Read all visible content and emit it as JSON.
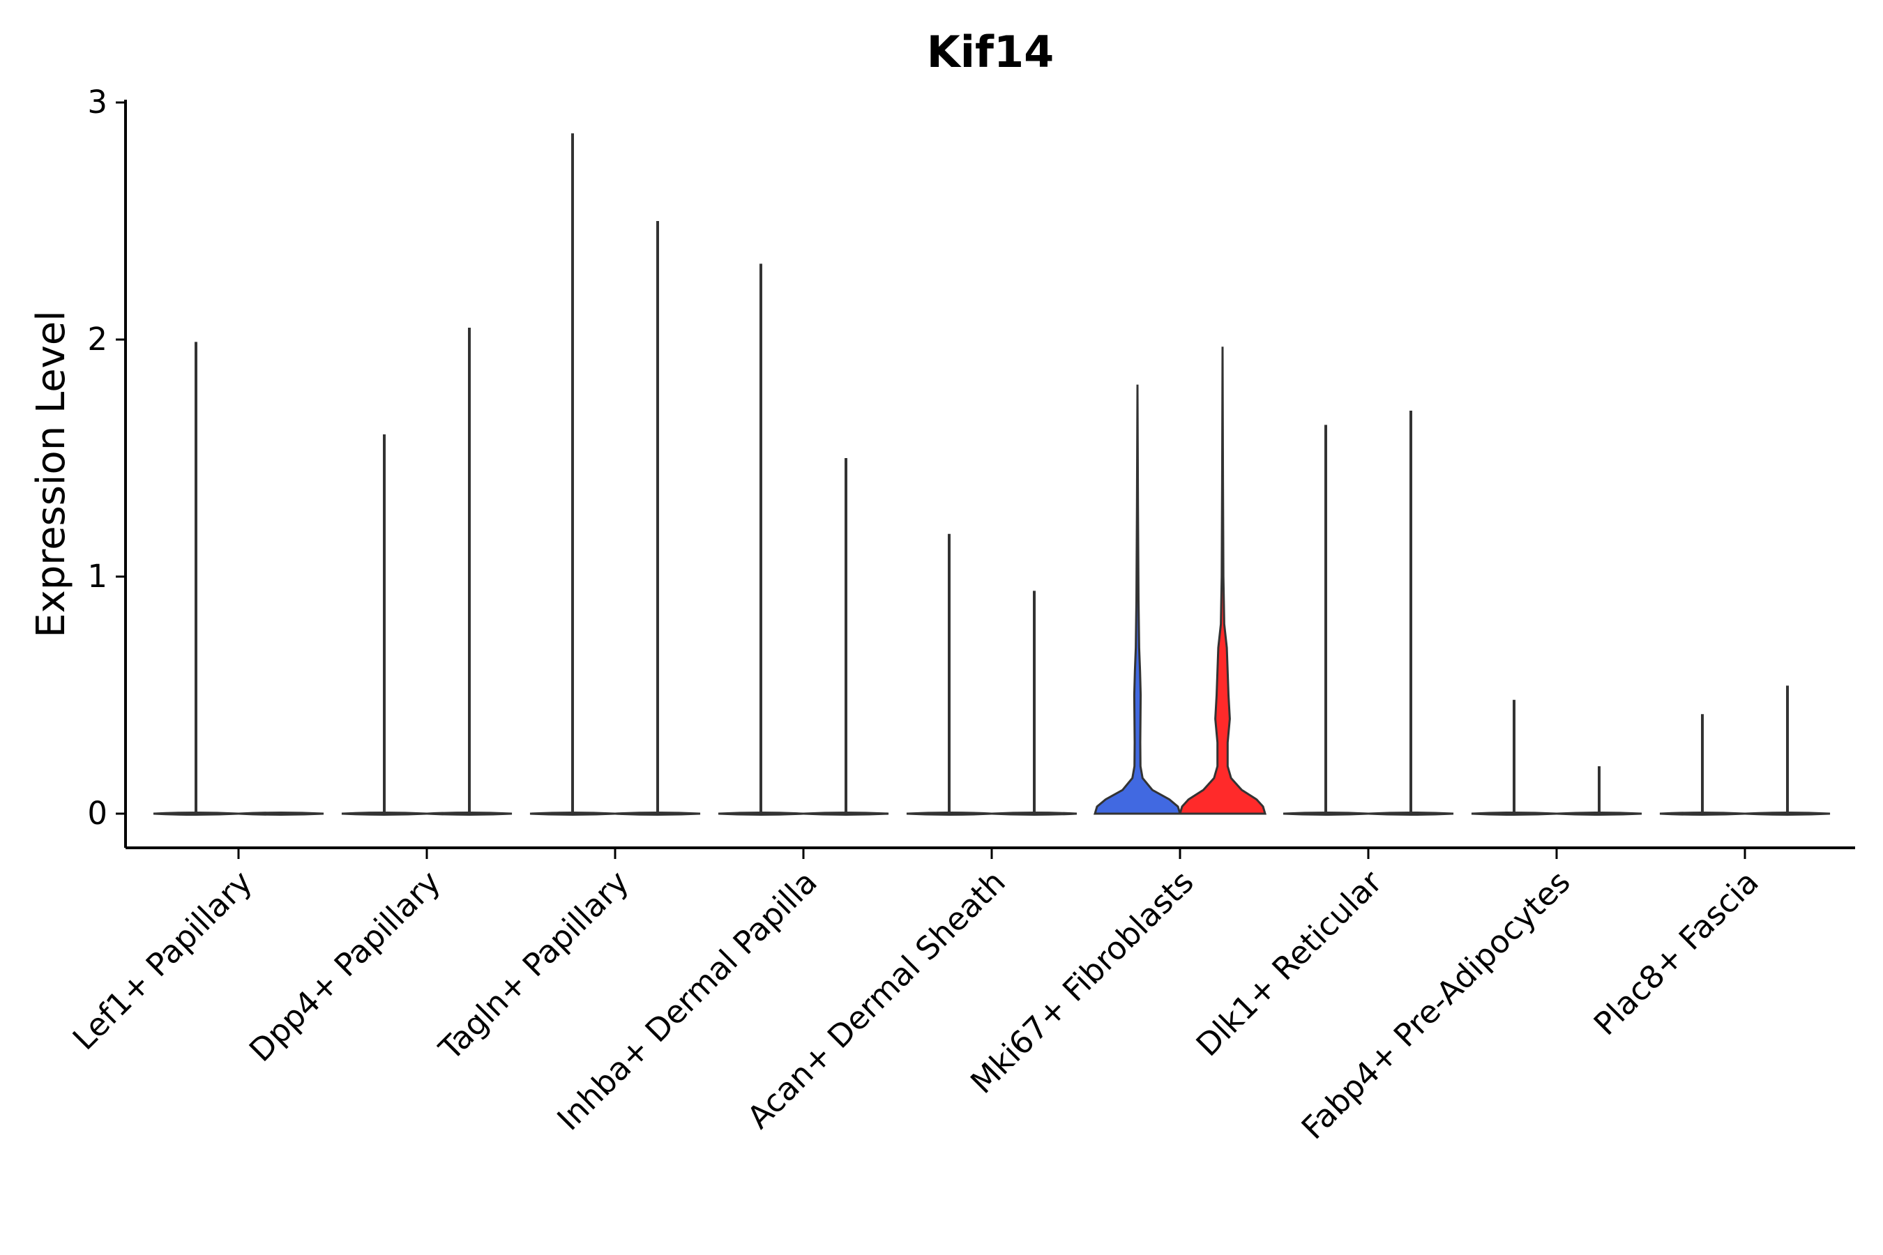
{
  "chart_data": {
    "type": "violin",
    "title": "Kif14",
    "xlabel": "",
    "ylabel": "Expression Level",
    "ylim": [
      -0.14,
      3.0
    ],
    "yticks": [
      0,
      1,
      2,
      3
    ],
    "grid": false,
    "categories": [
      "Lef1+ Papillary",
      "Dpp4+ Papillary",
      "Tagln+ Papillary",
      "Inhba+ Dermal Papilla",
      "Acan+ Dermal Sheath",
      "Mki67+ Fibroblasts",
      "Dlk1+ Reticular",
      "Fabp4+ Pre-Adipocytes",
      "Plac8+ Fascia"
    ],
    "series": [
      {
        "name": "left",
        "max_values": [
          1.99,
          1.6,
          2.87,
          2.32,
          1.18,
          1.81,
          1.64,
          0.48,
          0.42
        ]
      },
      {
        "name": "right",
        "max_values": [
          0.0,
          2.05,
          2.5,
          1.5,
          0.94,
          1.97,
          1.7,
          0.2,
          0.54
        ]
      }
    ],
    "highlight": {
      "category": "Mki67+ Fibroblasts",
      "left_color": "#4169E1",
      "right_color": "#FF2A2A"
    },
    "neutral_color": "#333333"
  }
}
